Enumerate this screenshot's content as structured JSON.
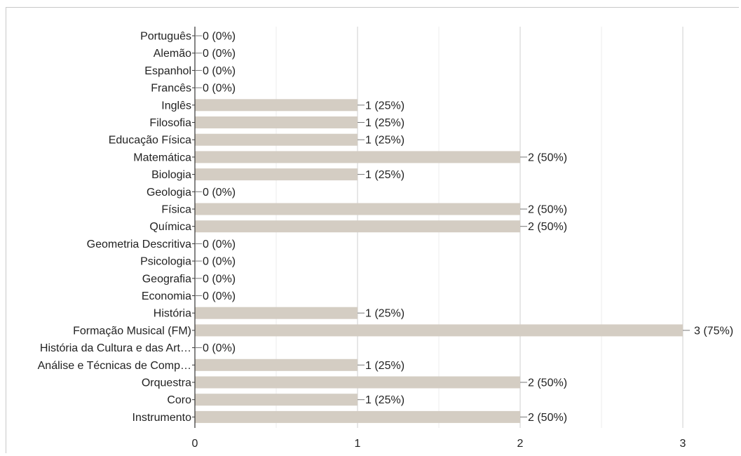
{
  "chart_data": {
    "type": "bar",
    "orientation": "horizontal",
    "title": "",
    "xlabel": "",
    "ylabel": "",
    "xlim": [
      0,
      3
    ],
    "xticks": [
      "0",
      "1",
      "2",
      "3"
    ],
    "grid": true,
    "legend": "none",
    "bar_color": "#d4cdc3",
    "categories": [
      "Português",
      "Alemão",
      "Espanhol",
      "Francês",
      "Inglês",
      "Filosofia",
      "Educação Física",
      "Matemática",
      "Biologia",
      "Geologia",
      "Física",
      "Química",
      "Geometria Descritiva",
      "Psicologia",
      "Geografia",
      "Economia",
      "História",
      "Formação Musical (FM)",
      "História da Cultura e das Art…",
      "Análise e Técnicas de Comp…",
      "Orquestra",
      "Coro",
      "Instrumento"
    ],
    "values": [
      0,
      0,
      0,
      0,
      1,
      1,
      1,
      2,
      1,
      0,
      2,
      2,
      0,
      0,
      0,
      0,
      1,
      3,
      0,
      1,
      2,
      1,
      2
    ],
    "labels": [
      "0 (0%)",
      "0 (0%)",
      "0 (0%)",
      "0 (0%)",
      "1 (25%)",
      "1 (25%)",
      "1 (25%)",
      "2 (50%)",
      "1 (25%)",
      "0 (0%)",
      "2 (50%)",
      "2 (50%)",
      "0 (0%)",
      "0 (0%)",
      "0 (0%)",
      "0 (0%)",
      "1 (25%)",
      "3 (75%)",
      "0 (0%)",
      "1 (25%)",
      "2 (50%)",
      "1 (25%)",
      "2 (50%)"
    ]
  }
}
